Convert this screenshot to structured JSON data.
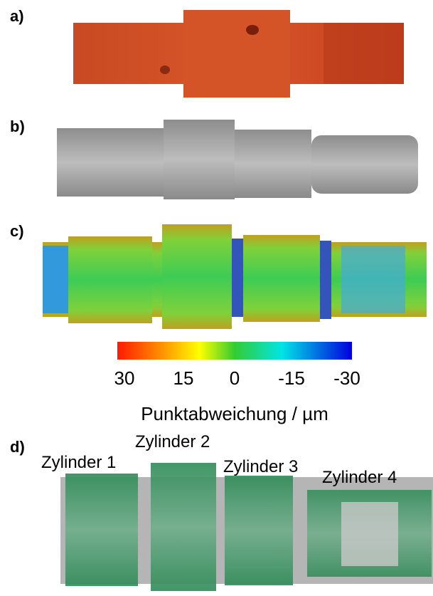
{
  "panels": {
    "a": {
      "label": "a)"
    },
    "b": {
      "label": "b)"
    },
    "c": {
      "label": "c)",
      "colorbar": {
        "ticks": [
          "30",
          "15",
          "0",
          "-15",
          "-30"
        ],
        "label": "Punktabweichung / µm"
      }
    },
    "d": {
      "label": "d)",
      "cylinders": [
        "Zylinder 1",
        "Zylinder 2",
        "Zylinder 3",
        "Zylinder 4"
      ]
    }
  }
}
